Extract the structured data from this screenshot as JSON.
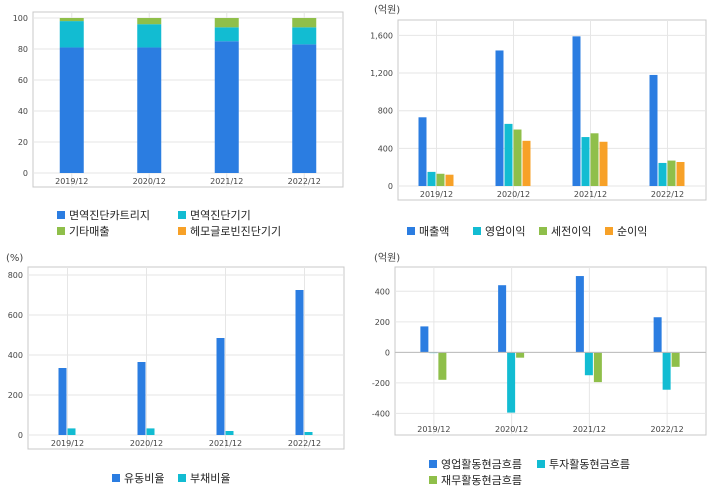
{
  "colors": {
    "blue": "#2b7de1",
    "cyan": "#12bcd2",
    "green": "#8fbf4a",
    "orange": "#f7a128",
    "grid": "#e6e6e6",
    "frame": "#c8c8c8",
    "axis": "#999999"
  },
  "chart_data": [
    {
      "type": "bar",
      "stacked": true,
      "categories": [
        "2019/12",
        "2020/12",
        "2021/12",
        "2022/12"
      ],
      "unit": "",
      "ylim": [
        0,
        100
      ],
      "yticks": [
        0,
        20,
        40,
        60,
        80,
        100
      ],
      "ytick_labels": [
        "0",
        "20",
        "40",
        "60",
        "80",
        "100"
      ],
      "grid": true,
      "legend_position": "bottom",
      "series": [
        {
          "name": "면역진단카트리지",
          "color": "blue",
          "values": [
            81,
            81,
            85,
            83
          ]
        },
        {
          "name": "면역진단기기",
          "color": "cyan",
          "values": [
            17,
            15,
            9,
            11
          ]
        },
        {
          "name": "기타매출",
          "color": "green",
          "values": [
            2,
            4,
            6,
            6
          ]
        },
        {
          "name": "헤모글로빈진단기기",
          "color": "orange",
          "values": [
            0,
            0,
            0,
            0
          ]
        }
      ]
    },
    {
      "type": "bar",
      "categories": [
        "2019/12",
        "2020/12",
        "2021/12",
        "2022/12"
      ],
      "unit": "(억원)",
      "ylim": [
        0,
        1700
      ],
      "yticks": [
        0,
        400,
        800,
        1200,
        1600
      ],
      "ytick_labels": [
        "0",
        "400",
        "800",
        "1,200",
        "1,600"
      ],
      "grid": true,
      "legend_position": "bottom",
      "series": [
        {
          "name": "매출액",
          "color": "blue",
          "values": [
            730,
            1440,
            1590,
            1180
          ]
        },
        {
          "name": "영업이익",
          "color": "cyan",
          "values": [
            150,
            660,
            520,
            245
          ]
        },
        {
          "name": "세전이익",
          "color": "green",
          "values": [
            130,
            600,
            560,
            270
          ]
        },
        {
          "name": "순이익",
          "color": "orange",
          "values": [
            120,
            480,
            470,
            255
          ]
        }
      ]
    },
    {
      "type": "bar",
      "categories": [
        "2019/12",
        "2020/12",
        "2021/12",
        "2022/12"
      ],
      "unit": "(%)",
      "ylim": [
        0,
        810
      ],
      "yticks": [
        0,
        200,
        400,
        600,
        800
      ],
      "ytick_labels": [
        "0",
        "200",
        "400",
        "600",
        "800"
      ],
      "grid": true,
      "legend_position": "bottom",
      "series": [
        {
          "name": "유동비율",
          "color": "blue",
          "values": [
            335,
            365,
            485,
            725
          ]
        },
        {
          "name": "부채비율",
          "color": "cyan",
          "values": [
            33,
            33,
            20,
            15
          ]
        }
      ]
    },
    {
      "type": "bar",
      "categories": [
        "2019/12",
        "2020/12",
        "2021/12",
        "2022/12"
      ],
      "unit": "(억원)",
      "ylim": [
        -450,
        520
      ],
      "yticks": [
        -400,
        -200,
        0,
        200,
        400
      ],
      "ytick_labels": [
        "-400",
        "-200",
        "0",
        "200",
        "400"
      ],
      "grid": true,
      "legend_position": "bottom",
      "series": [
        {
          "name": "영업활동현금흐름",
          "color": "blue",
          "values": [
            170,
            440,
            500,
            230
          ]
        },
        {
          "name": "투자활동현금흐름",
          "color": "cyan",
          "values": [
            -5,
            -395,
            -150,
            -245
          ]
        },
        {
          "name": "재무활동현금흐름",
          "color": "green",
          "values": [
            -180,
            -35,
            -195,
            -95
          ]
        }
      ]
    }
  ]
}
